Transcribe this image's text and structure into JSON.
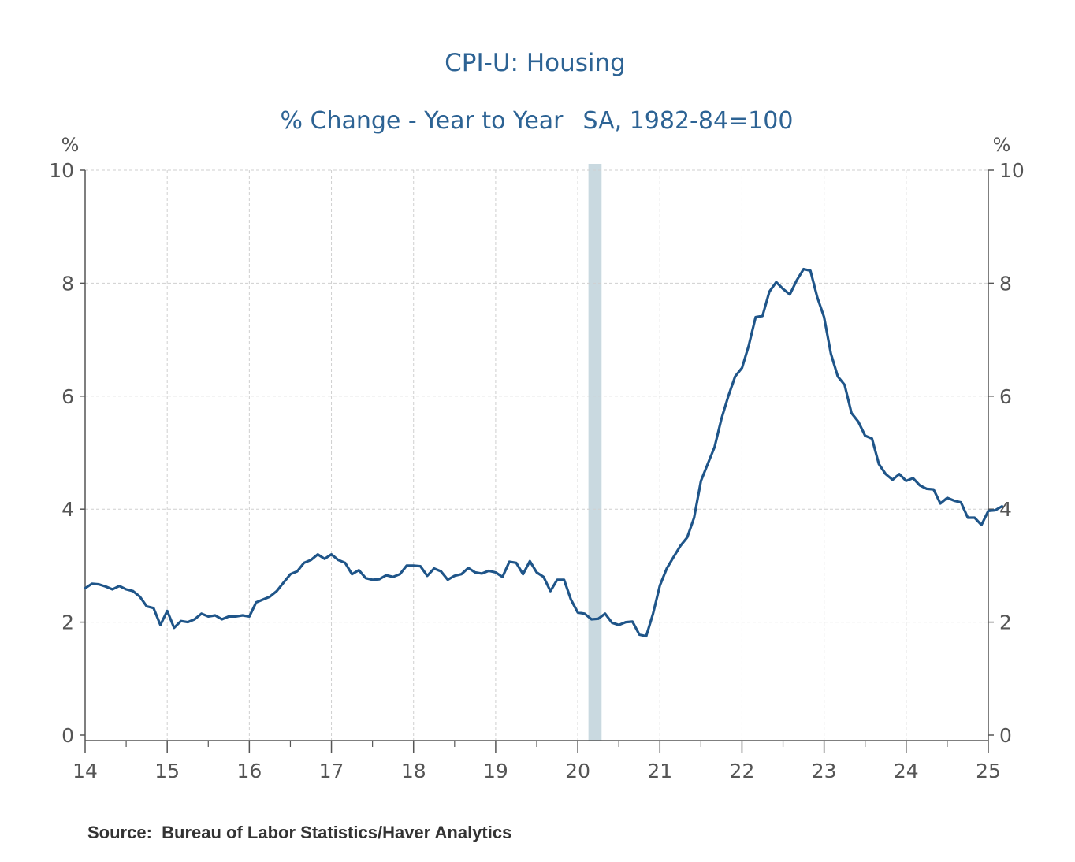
{
  "chart_data": {
    "type": "line",
    "title": "CPI-U: Housing",
    "subtitle_left": "% Change - Year to Year",
    "subtitle_right": "SA, 1982-84=100",
    "ylabel_left": "%",
    "ylabel_right": "%",
    "ylim": [
      0,
      10
    ],
    "xlim": [
      2014.0,
      2025.0
    ],
    "y_ticks": [
      0,
      2,
      4,
      6,
      8,
      10
    ],
    "y_tick_labels": [
      "0",
      "2",
      "4",
      "6",
      "8",
      "10"
    ],
    "x_tick_years": [
      2014,
      2015,
      2016,
      2017,
      2018,
      2019,
      2020,
      2021,
      2022,
      2023,
      2024,
      2025
    ],
    "x_tick_labels": [
      "14",
      "15",
      "16",
      "17",
      "18",
      "19",
      "20",
      "21",
      "22",
      "23",
      "24",
      "25"
    ],
    "grid": true,
    "recession": {
      "start": 2020.13,
      "end": 2020.29
    },
    "series": [
      {
        "name": "CPI-U: Housing",
        "color": "#1f5589",
        "start": 2014.0,
        "step_months": 1,
        "values": [
          2.6,
          2.68,
          2.67,
          2.63,
          2.58,
          2.64,
          2.58,
          2.55,
          2.45,
          2.28,
          2.25,
          1.95,
          2.2,
          1.9,
          2.02,
          2.0,
          2.05,
          2.15,
          2.1,
          2.12,
          2.05,
          2.1,
          2.1,
          2.12,
          2.1,
          2.35,
          2.4,
          2.45,
          2.55,
          2.7,
          2.85,
          2.9,
          3.05,
          3.1,
          3.2,
          3.12,
          3.2,
          3.1,
          3.05,
          2.85,
          2.92,
          2.78,
          2.75,
          2.76,
          2.83,
          2.8,
          2.85,
          3.0,
          3.0,
          2.99,
          2.82,
          2.95,
          2.9,
          2.75,
          2.82,
          2.85,
          2.96,
          2.88,
          2.86,
          2.91,
          2.88,
          2.8,
          3.07,
          3.05,
          2.85,
          3.08,
          2.88,
          2.8,
          2.55,
          2.75,
          2.75,
          2.4,
          2.17,
          2.15,
          2.05,
          2.06,
          2.15,
          1.99,
          1.95,
          2.0,
          2.01,
          1.78,
          1.75,
          2.15,
          2.65,
          2.95,
          3.15,
          3.35,
          3.5,
          3.85,
          4.5,
          4.8,
          5.1,
          5.6,
          6.0,
          6.35,
          6.5,
          6.9,
          7.4,
          7.42,
          7.85,
          8.02,
          7.9,
          7.8,
          8.05,
          8.25,
          8.22,
          7.75,
          7.4,
          6.75,
          6.35,
          6.2,
          5.7,
          5.55,
          5.3,
          5.25,
          4.8,
          4.62,
          4.52,
          4.62,
          4.5,
          4.55,
          4.42,
          4.36,
          4.35,
          4.1,
          4.2,
          4.15,
          4.12,
          3.85,
          3.85,
          3.72,
          3.97,
          3.98,
          4.05
        ]
      }
    ],
    "source": "Source:  Bureau of Labor Statistics/Haver Analytics"
  }
}
